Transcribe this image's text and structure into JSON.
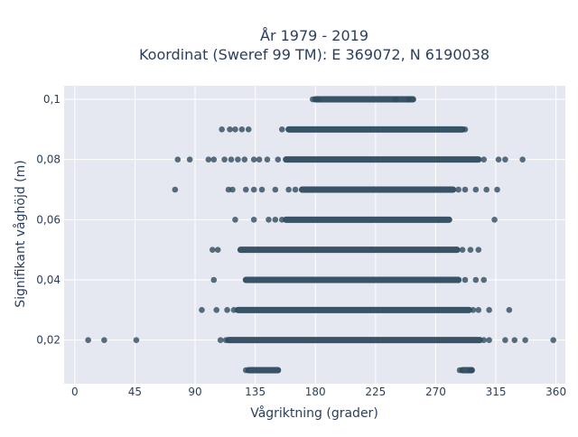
{
  "chart_data": {
    "type": "scatter",
    "title": "År 1979 - 2019",
    "subtitle": "Koordinat (Sweref 99 TM): E 369072, N 6190038",
    "xlabel": "Vågriktning (grader)",
    "ylabel": "Signifikant våghöjd (m)",
    "xlim": [
      -8,
      367
    ],
    "ylim": [
      0.0055,
      0.1045
    ],
    "x_ticks": [
      0,
      45,
      90,
      135,
      180,
      225,
      270,
      315,
      360
    ],
    "x_tick_labels": [
      "0",
      "45",
      "90",
      "135",
      "180",
      "225",
      "270",
      "315",
      "360"
    ],
    "y_ticks": [
      0.02,
      0.04,
      0.06,
      0.08,
      0.1
    ],
    "y_tick_labels": [
      "0,02",
      "0,04",
      "0,06",
      "0,08",
      "0,1"
    ],
    "grid": true,
    "plot_background": "#e5e8f0",
    "grid_color": "#ffffff",
    "marker_color": "#2f4b5f",
    "series": [
      {
        "dense_ranges": [
          {
            "y": 0.1,
            "from": 180,
            "to": 253
          },
          {
            "y": 0.09,
            "from": 160,
            "to": 290
          },
          {
            "y": 0.08,
            "from": 158,
            "to": 302
          },
          {
            "y": 0.07,
            "from": 170,
            "to": 283
          },
          {
            "y": 0.06,
            "from": 158,
            "to": 280
          },
          {
            "y": 0.05,
            "from": 124,
            "to": 286
          },
          {
            "y": 0.04,
            "from": 128,
            "to": 287
          },
          {
            "y": 0.03,
            "from": 122,
            "to": 295
          },
          {
            "y": 0.02,
            "from": 115,
            "to": 303
          },
          {
            "y": 0.01,
            "from": 130,
            "to": 152
          },
          {
            "y": 0.01,
            "from": 290,
            "to": 297
          }
        ],
        "points": [
          {
            "x": 178,
            "y": 0.1
          },
          {
            "x": 182,
            "y": 0.1
          },
          {
            "x": 240,
            "y": 0.1
          },
          {
            "x": 250,
            "y": 0.1
          },
          {
            "x": 110,
            "y": 0.09
          },
          {
            "x": 116,
            "y": 0.09
          },
          {
            "x": 120,
            "y": 0.09
          },
          {
            "x": 125,
            "y": 0.09
          },
          {
            "x": 130,
            "y": 0.09
          },
          {
            "x": 155,
            "y": 0.09
          },
          {
            "x": 292,
            "y": 0.09
          },
          {
            "x": 77,
            "y": 0.08
          },
          {
            "x": 86,
            "y": 0.08
          },
          {
            "x": 100,
            "y": 0.08
          },
          {
            "x": 104,
            "y": 0.08
          },
          {
            "x": 112,
            "y": 0.08
          },
          {
            "x": 117,
            "y": 0.08
          },
          {
            "x": 122,
            "y": 0.08
          },
          {
            "x": 127,
            "y": 0.08
          },
          {
            "x": 134,
            "y": 0.08
          },
          {
            "x": 138,
            "y": 0.08
          },
          {
            "x": 144,
            "y": 0.08
          },
          {
            "x": 152,
            "y": 0.08
          },
          {
            "x": 306,
            "y": 0.08
          },
          {
            "x": 317,
            "y": 0.08
          },
          {
            "x": 322,
            "y": 0.08
          },
          {
            "x": 335,
            "y": 0.08
          },
          {
            "x": 75,
            "y": 0.07
          },
          {
            "x": 115,
            "y": 0.07
          },
          {
            "x": 118,
            "y": 0.07
          },
          {
            "x": 128,
            "y": 0.07
          },
          {
            "x": 134,
            "y": 0.07
          },
          {
            "x": 140,
            "y": 0.07
          },
          {
            "x": 150,
            "y": 0.07
          },
          {
            "x": 160,
            "y": 0.07
          },
          {
            "x": 165,
            "y": 0.07
          },
          {
            "x": 287,
            "y": 0.07
          },
          {
            "x": 292,
            "y": 0.07
          },
          {
            "x": 300,
            "y": 0.07
          },
          {
            "x": 308,
            "y": 0.07
          },
          {
            "x": 316,
            "y": 0.07
          },
          {
            "x": 120,
            "y": 0.06
          },
          {
            "x": 134,
            "y": 0.06
          },
          {
            "x": 145,
            "y": 0.06
          },
          {
            "x": 150,
            "y": 0.06
          },
          {
            "x": 155,
            "y": 0.06
          },
          {
            "x": 314,
            "y": 0.06
          },
          {
            "x": 103,
            "y": 0.05
          },
          {
            "x": 107,
            "y": 0.05
          },
          {
            "x": 290,
            "y": 0.05
          },
          {
            "x": 296,
            "y": 0.05
          },
          {
            "x": 302,
            "y": 0.05
          },
          {
            "x": 104,
            "y": 0.04
          },
          {
            "x": 292,
            "y": 0.04
          },
          {
            "x": 300,
            "y": 0.04
          },
          {
            "x": 306,
            "y": 0.04
          },
          {
            "x": 95,
            "y": 0.03
          },
          {
            "x": 106,
            "y": 0.03
          },
          {
            "x": 114,
            "y": 0.03
          },
          {
            "x": 119,
            "y": 0.03
          },
          {
            "x": 298,
            "y": 0.03
          },
          {
            "x": 302,
            "y": 0.03
          },
          {
            "x": 310,
            "y": 0.03
          },
          {
            "x": 325,
            "y": 0.03
          },
          {
            "x": 10,
            "y": 0.02
          },
          {
            "x": 22,
            "y": 0.02
          },
          {
            "x": 46,
            "y": 0.02
          },
          {
            "x": 109,
            "y": 0.02
          },
          {
            "x": 113,
            "y": 0.02
          },
          {
            "x": 306,
            "y": 0.02
          },
          {
            "x": 310,
            "y": 0.02
          },
          {
            "x": 322,
            "y": 0.02
          },
          {
            "x": 329,
            "y": 0.02
          },
          {
            "x": 337,
            "y": 0.02
          },
          {
            "x": 358,
            "y": 0.02
          },
          {
            "x": 128,
            "y": 0.01
          },
          {
            "x": 288,
            "y": 0.01
          },
          {
            "x": 296,
            "y": 0.01
          }
        ]
      }
    ]
  }
}
